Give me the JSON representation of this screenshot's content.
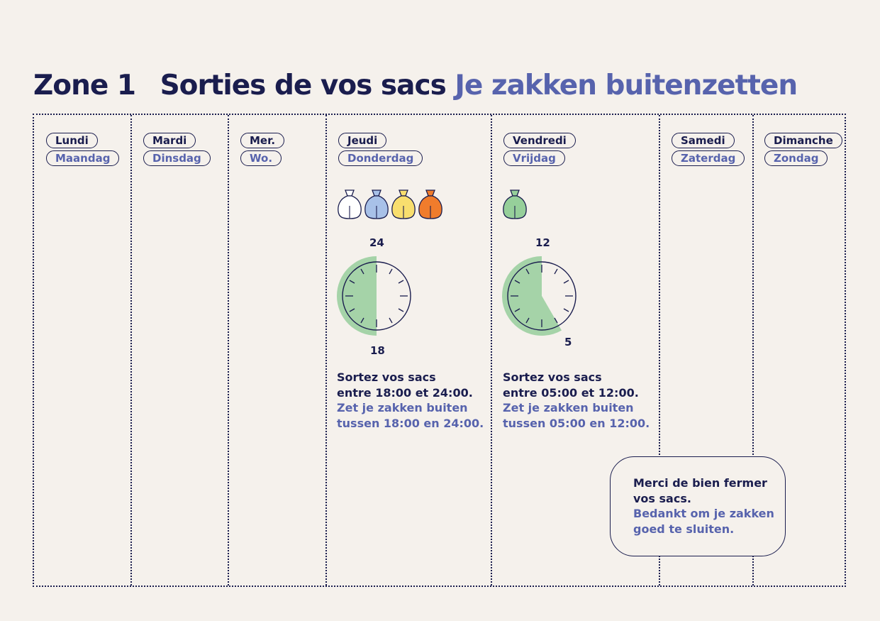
{
  "title": {
    "zone": "Zone 1",
    "fr": "Sorties de vos sacs",
    "nl": "Je zakken buitenzetten"
  },
  "days": [
    {
      "fr": "Lundi",
      "nl": "Maandag"
    },
    {
      "fr": "Mardi",
      "nl": "Dinsdag"
    },
    {
      "fr": "Mer.",
      "nl": "Wo."
    },
    {
      "fr": "Jeudi",
      "nl": "Donderdag"
    },
    {
      "fr": "Vendredi",
      "nl": "Vrijdag"
    },
    {
      "fr": "Samedi",
      "nl": "Zaterdag"
    },
    {
      "fr": "Dimanche",
      "nl": "Zondag"
    }
  ],
  "thursday": {
    "bags": [
      "white",
      "blue",
      "yellow",
      "orange"
    ],
    "clock_start_label": "18",
    "clock_end_label": "24",
    "text_fr_1": "Sortez vos sacs",
    "text_fr_2": "entre 18:00 et 24:00.",
    "text_nl_1": "Zet je zakken buiten",
    "text_nl_2": "tussen 18:00 en 24:00."
  },
  "friday": {
    "bags": [
      "green"
    ],
    "clock_start_label": "5",
    "clock_end_label": "12",
    "text_fr_1": "Sortez vos sacs",
    "text_fr_2": "entre 05:00 et 12:00.",
    "text_nl_1": "Zet je zakken buiten",
    "text_nl_2": "tussen 05:00 en 12:00."
  },
  "note": {
    "fr": "Merci de bien fermer\nvos sacs.",
    "nl": "Bedankt om je zakken\ngoed te sluiten."
  },
  "colors": {
    "navy": "#1a1d4e",
    "accent": "#5763ad",
    "background": "#f5f1ec",
    "clock_fill": "#a5d3a8",
    "bag_white": "#ffffff",
    "bag_blue": "#a8c1e8",
    "bag_yellow": "#f8de6e",
    "bag_orange": "#f07c2c",
    "bag_green": "#96cf9a"
  }
}
